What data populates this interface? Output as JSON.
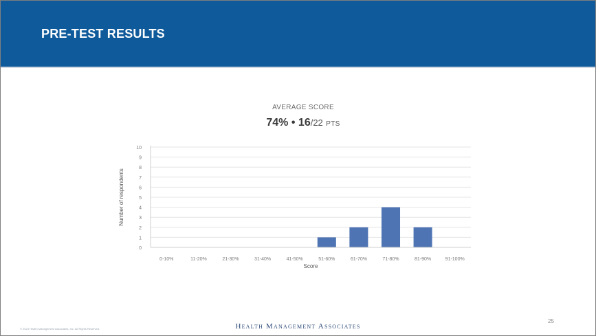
{
  "slide": {
    "title": "PRE-TEST RESULTS",
    "page_number": "25",
    "footer_brand": "Health Management Associates",
    "footer_copyright": "© 2024 Health Management Associates, Inc. All Rights Reserved."
  },
  "summary": {
    "label": "AVERAGE SCORE",
    "percent": "74%",
    "separator": "•",
    "points": "16",
    "total": "/22",
    "unit": "PTS"
  },
  "colors": {
    "header": "#0f5a9a",
    "bar": "#4e74b3",
    "grid": "#e4e4e4"
  },
  "chart_data": {
    "type": "bar",
    "categories": [
      "0-10%",
      "11-20%",
      "21-30%",
      "31-40%",
      "41-50%",
      "51-60%",
      "61-70%",
      "71-80%",
      "81-90%",
      "91-100%"
    ],
    "values": [
      0,
      0,
      0,
      0,
      0,
      1,
      2,
      4,
      2,
      0
    ],
    "xlabel": "Score",
    "ylabel": "Number of respondents",
    "ylim": [
      0,
      10
    ],
    "yticks": [
      "0",
      "1",
      "2",
      "3",
      "4",
      "5",
      "6",
      "7",
      "8",
      "9",
      "10"
    ],
    "grid": true
  }
}
